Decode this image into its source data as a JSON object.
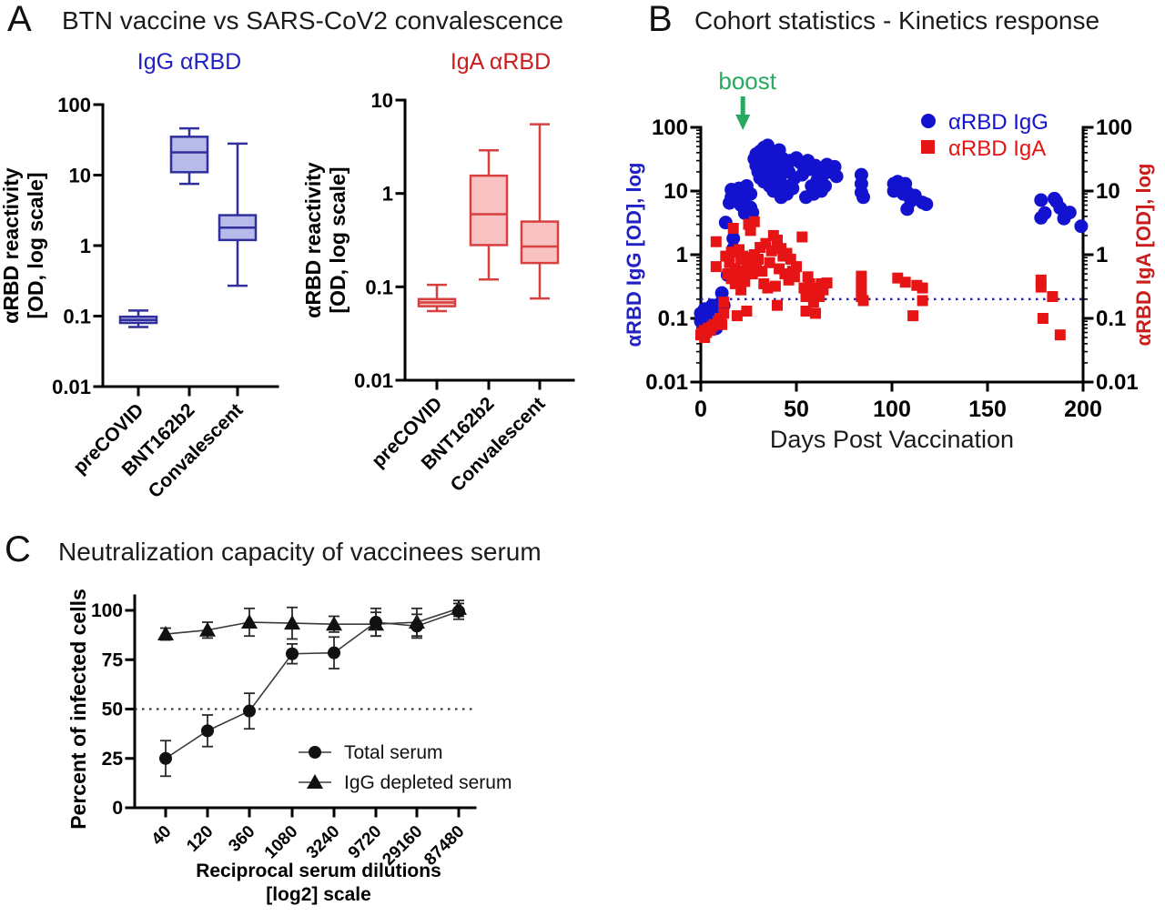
{
  "figure": {
    "background": "#ffffff"
  },
  "panels": {
    "a": {
      "letter": "A",
      "title": "BTN vaccine vs SARS-CoV2 convalescence"
    },
    "b": {
      "letter": "B",
      "title": "Cohort statistics - Kinetics response"
    },
    "c": {
      "letter": "C",
      "title": "Neutralization capacity of vaccinees serum"
    }
  },
  "chart_data": [
    {
      "id": "igg-box",
      "type": "box",
      "title": "IgG αRBD",
      "ylabel_lines": [
        "αRBD reactivity",
        "[OD, log scale]"
      ],
      "yscale": "log",
      "ylim": [
        0.01,
        100
      ],
      "yticks": [
        100,
        10,
        1,
        0.1,
        0.01
      ],
      "categories": [
        "preCOVID",
        "BNT162b2",
        "Convalescent"
      ],
      "boxes": [
        {
          "category": "preCOVID",
          "min": 0.07,
          "q1": 0.08,
          "median": 0.088,
          "q3": 0.098,
          "max": 0.12
        },
        {
          "category": "BNT162b2",
          "min": 7.5,
          "q1": 11,
          "median": 21,
          "q3": 35,
          "max": 46
        },
        {
          "category": "Convalescent",
          "min": 0.27,
          "q1": 1.2,
          "median": 1.8,
          "q3": 2.7,
          "max": 28
        }
      ],
      "colors": {
        "fill": "#b7bbea",
        "stroke": "#2f2f9d",
        "title": "#2121c4"
      }
    },
    {
      "id": "iga-box",
      "type": "box",
      "title": "IgA αRBD",
      "ylabel_lines": [
        "αRBD reactivity",
        "[OD, log scale]"
      ],
      "yscale": "log",
      "ylim": [
        0.01,
        10
      ],
      "yticks": [
        10,
        1,
        0.1,
        0.01
      ],
      "categories": [
        "preCOVID",
        "BNT162b2",
        "Convalescent"
      ],
      "boxes": [
        {
          "category": "preCOVID",
          "min": 0.055,
          "q1": 0.062,
          "median": 0.068,
          "q3": 0.074,
          "max": 0.105
        },
        {
          "category": "BNT162b2",
          "min": 0.12,
          "q1": 0.28,
          "median": 0.6,
          "q3": 1.55,
          "max": 2.9
        },
        {
          "category": "Convalescent",
          "min": 0.075,
          "q1": 0.18,
          "median": 0.27,
          "q3": 0.5,
          "max": 5.5
        }
      ],
      "colors": {
        "fill": "#f9c2c2",
        "stroke": "#d84040",
        "title": "#cc1d1d"
      }
    },
    {
      "id": "kinetics",
      "type": "scatter",
      "xlabel": "Days Post Vaccination",
      "ylabel_left": "αRBD IgG  [OD], log",
      "ylabel_right": "αRBD IgA  [OD], log",
      "xlim": [
        0,
        200
      ],
      "xticks": [
        0,
        50,
        100,
        150,
        200
      ],
      "yscale": "log",
      "ylim": [
        0.01,
        100
      ],
      "yticks": [
        100,
        10,
        1,
        0.1,
        0.01
      ],
      "threshold": 0.2,
      "annotation": {
        "text": "boost",
        "day": 22,
        "color": "#27a95f"
      },
      "colors": {
        "igg": "#1313cf",
        "iga": "#e61414",
        "threshold": "#27279b"
      },
      "legend": [
        {
          "label": "αRBD IgG",
          "marker": "circle",
          "color": "#1313cf"
        },
        {
          "label": "αRBD IgA",
          "marker": "square",
          "color": "#e61414"
        }
      ],
      "series": [
        {
          "name": "αRBD IgG",
          "marker": "circle",
          "color": "#1313cf",
          "points": [
            [
              0,
              0.09
            ],
            [
              0,
              0.12
            ],
            [
              1,
              0.08
            ],
            [
              1,
              0.11
            ],
            [
              2,
              0.1
            ],
            [
              2,
              0.14
            ],
            [
              3,
              0.07
            ],
            [
              3,
              0.09
            ],
            [
              4,
              0.11
            ],
            [
              4,
              0.08
            ],
            [
              5,
              0.13
            ],
            [
              5,
              0.1
            ],
            [
              6,
              0.09
            ],
            [
              6,
              0.16
            ],
            [
              7,
              0.12
            ],
            [
              8,
              0.1
            ],
            [
              8,
              0.07
            ],
            [
              9,
              0.13
            ],
            [
              10,
              0.11
            ],
            [
              10,
              0.17
            ],
            [
              11,
              0.25
            ],
            [
              12,
              0.16
            ],
            [
              13,
              3.2
            ],
            [
              14,
              0.48
            ],
            [
              15,
              6.5
            ],
            [
              16,
              8
            ],
            [
              16,
              10.5
            ],
            [
              17,
              1.8
            ],
            [
              17,
              1.25
            ],
            [
              18,
              9
            ],
            [
              19,
              7
            ],
            [
              19,
              9.5
            ],
            [
              20,
              11
            ],
            [
              20,
              8
            ],
            [
              21,
              6
            ],
            [
              21,
              9
            ],
            [
              22,
              7.5
            ],
            [
              22,
              10
            ],
            [
              23,
              4.5
            ],
            [
              23,
              8.5
            ],
            [
              24,
              5
            ],
            [
              24,
              12
            ],
            [
              25,
              4.2
            ],
            [
              26,
              5.5
            ],
            [
              26,
              9
            ],
            [
              27,
              4.6
            ],
            [
              28,
              32
            ],
            [
              29,
              25
            ],
            [
              29,
              38
            ],
            [
              30,
              20
            ],
            [
              30,
              28
            ],
            [
              31,
              42
            ],
            [
              31,
              16
            ],
            [
              32,
              35
            ],
            [
              32,
              22
            ],
            [
              33,
              48
            ],
            [
              33,
              14
            ],
            [
              34,
              26
            ],
            [
              34,
              18
            ],
            [
              35,
              52
            ],
            [
              35,
              30
            ],
            [
              36,
              24
            ],
            [
              36,
              12
            ],
            [
              37,
              40
            ],
            [
              37,
              16
            ],
            [
              38,
              28
            ],
            [
              38,
              10
            ],
            [
              39,
              20
            ],
            [
              40,
              35
            ],
            [
              40,
              14
            ],
            [
              41,
              44
            ],
            [
              41,
              25
            ],
            [
              42,
              8
            ],
            [
              42,
              18
            ],
            [
              43,
              32
            ],
            [
              44,
              12
            ],
            [
              45,
              28
            ],
            [
              45,
              9
            ],
            [
              46,
              20
            ],
            [
              47,
              30
            ],
            [
              48,
              11
            ],
            [
              49,
              16
            ],
            [
              50,
              33
            ],
            [
              52,
              28
            ],
            [
              53,
              18
            ],
            [
              54,
              24
            ],
            [
              55,
              8
            ],
            [
              56,
              30
            ],
            [
              57,
              22
            ],
            [
              58,
              12
            ],
            [
              59,
              9
            ],
            [
              60,
              25
            ],
            [
              61,
              15
            ],
            [
              62,
              20
            ],
            [
              63,
              10
            ],
            [
              64,
              18
            ],
            [
              65,
              12
            ],
            [
              66,
              26
            ],
            [
              68,
              20
            ],
            [
              70,
              24
            ],
            [
              71,
              17
            ],
            [
              84,
              18
            ],
            [
              84,
              13
            ],
            [
              84,
              9.5
            ],
            [
              85,
              8
            ],
            [
              101,
              13
            ],
            [
              101,
              10
            ],
            [
              103,
              14
            ],
            [
              106,
              9
            ],
            [
              107,
              13
            ],
            [
              108,
              9.5
            ],
            [
              108,
              5.2
            ],
            [
              110,
              7
            ],
            [
              112,
              8.5
            ],
            [
              116,
              6.6
            ],
            [
              118,
              6.2
            ],
            [
              178,
              7.2
            ],
            [
              178,
              3.8
            ],
            [
              180,
              4.5
            ],
            [
              185,
              7.6
            ],
            [
              186,
              6.9
            ],
            [
              188,
              5.4
            ],
            [
              190,
              3.7
            ],
            [
              193,
              4.6
            ],
            [
              199,
              2.8
            ]
          ]
        },
        {
          "name": "αRBD IgA",
          "marker": "square",
          "color": "#e61414",
          "points": [
            [
              0,
              0.055
            ],
            [
              1,
              0.06
            ],
            [
              2,
              0.05
            ],
            [
              2,
              0.065
            ],
            [
              3,
              0.06
            ],
            [
              4,
              0.07
            ],
            [
              5,
              0.065
            ],
            [
              6,
              0.075
            ],
            [
              7,
              0.08
            ],
            [
              8,
              1.6
            ],
            [
              8,
              0.65
            ],
            [
              9,
              0.09
            ],
            [
              10,
              0.1
            ],
            [
              11,
              0.08
            ],
            [
              12,
              0.12
            ],
            [
              12,
              0.18
            ],
            [
              13,
              0.95
            ],
            [
              14,
              0.5
            ],
            [
              15,
              0.75
            ],
            [
              16,
              0.42
            ],
            [
              16,
              1.1
            ],
            [
              17,
              2.6
            ],
            [
              18,
              0.35
            ],
            [
              18,
              0.6
            ],
            [
              19,
              0.11
            ],
            [
              20,
              1.2
            ],
            [
              20,
              0.45
            ],
            [
              21,
              0.85
            ],
            [
              21,
              0.28
            ],
            [
              22,
              0.55
            ],
            [
              22,
              0.95
            ],
            [
              23,
              0.38
            ],
            [
              24,
              0.13
            ],
            [
              24,
              0.7
            ],
            [
              25,
              3
            ],
            [
              26,
              2.4
            ],
            [
              26,
              0.9
            ],
            [
              27,
              0.5
            ],
            [
              28,
              3.3
            ],
            [
              28,
              1
            ],
            [
              29,
              0.62
            ],
            [
              30,
              0.85
            ],
            [
              31,
              1.3
            ],
            [
              32,
              0.55
            ],
            [
              33,
              0.35
            ],
            [
              34,
              1.5
            ],
            [
              35,
              0.3
            ],
            [
              36,
              0.75
            ],
            [
              37,
              1.15
            ],
            [
              38,
              2
            ],
            [
              39,
              0.32
            ],
            [
              40,
              0.16
            ],
            [
              40,
              1.7
            ],
            [
              41,
              0.6
            ],
            [
              42,
              1.25
            ],
            [
              43,
              0.95
            ],
            [
              44,
              0.5
            ],
            [
              45,
              1.05
            ],
            [
              46,
              0.4
            ],
            [
              47,
              0.85
            ],
            [
              48,
              0.55
            ],
            [
              49,
              0.45
            ],
            [
              50,
              0.65
            ],
            [
              53,
              1.9
            ],
            [
              54,
              0.3
            ],
            [
              55,
              0.22
            ],
            [
              55,
              0.13
            ],
            [
              56,
              0.45
            ],
            [
              57,
              0.35
            ],
            [
              58,
              0.25
            ],
            [
              59,
              0.18
            ],
            [
              60,
              0.3
            ],
            [
              60,
              0.12
            ],
            [
              62,
              0.22
            ],
            [
              63,
              0.35
            ],
            [
              64,
              0.28
            ],
            [
              66,
              0.36
            ],
            [
              84,
              0.46
            ],
            [
              84,
              0.36
            ],
            [
              84,
              0.28
            ],
            [
              84,
              0.22
            ],
            [
              85,
              0.19
            ],
            [
              103,
              0.43
            ],
            [
              107,
              0.37
            ],
            [
              111,
              0.11
            ],
            [
              113,
              0.33
            ],
            [
              116,
              0.3
            ],
            [
              116,
              0.19
            ],
            [
              178,
              0.4
            ],
            [
              178,
              0.31
            ],
            [
              179,
              0.1
            ],
            [
              184,
              0.22
            ],
            [
              188,
              0.055
            ]
          ]
        }
      ]
    },
    {
      "id": "neutralization",
      "type": "line",
      "xlabel_lines": [
        "Reciprocal serum dilutions",
        "[log2] scale"
      ],
      "ylabel": "Percent of infected cells",
      "categories": [
        "40",
        "120",
        "360",
        "1080",
        "3240",
        "9720",
        "29160",
        "87480"
      ],
      "yticks": [
        0,
        25,
        50,
        75,
        100
      ],
      "threshold": 50,
      "colors": {
        "line": "#3a3a3a",
        "marker": "#111111",
        "threshold": "#222222"
      },
      "series": [
        {
          "name": "IgG depleted serum",
          "marker": "triangle",
          "values": [
            88,
            90,
            94,
            93.5,
            93,
            93,
            94,
            101
          ],
          "errors": [
            3,
            4,
            7,
            8,
            4,
            6,
            7,
            4
          ]
        },
        {
          "name": "Total serum",
          "marker": "circle",
          "values": [
            25,
            39,
            49,
            78,
            78.5,
            94,
            92,
            99.5
          ],
          "errors": [
            9,
            8,
            9,
            5,
            8,
            7,
            6,
            4
          ]
        }
      ],
      "legend": [
        {
          "label": "Total serum",
          "marker": "circle"
        },
        {
          "label": "IgG depleted serum",
          "marker": "triangle"
        }
      ]
    }
  ]
}
